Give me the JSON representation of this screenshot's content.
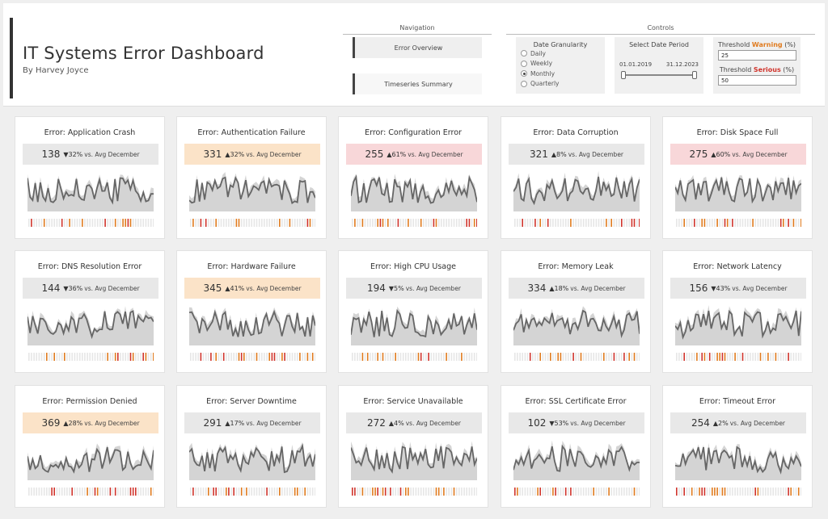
{
  "header": {
    "title": "IT Systems Error Dashboard",
    "subtitle": "By Harvey Joyce"
  },
  "navigation": {
    "heading": "Navigation",
    "items": [
      {
        "label": "Error Overview",
        "active": true
      },
      {
        "label": "Timeseries Summary",
        "active": false
      }
    ]
  },
  "controls": {
    "heading": "Controls",
    "granularity": {
      "title": "Date Granularity",
      "options": [
        "Daily",
        "Weekly",
        "Monthly",
        "Quarterly"
      ],
      "selected": "Monthly"
    },
    "date_period": {
      "title": "Select Date Period",
      "start": "01.01.2019",
      "end": "31.12.2023"
    },
    "threshold": {
      "warning_prefix": "Threshold ",
      "warning_word": "Warning",
      "warning_suffix": " (%)",
      "warning_value": "25",
      "serious_prefix": "Threshold ",
      "serious_word": "Serious",
      "serious_suffix": " (%)",
      "serious_value": "50"
    }
  },
  "colors": {
    "normal_kpi": "#e8e8e8",
    "warning_kpi": "#fbe3c8",
    "serious_kpi": "#f8d7d9",
    "warning_accent": "#e07b1f",
    "serious_accent": "#d0342c",
    "line": "#666666",
    "band": "#d4d4d4"
  },
  "vs_label": "vs. Avg December",
  "cards": [
    {
      "title": "Error: Application Crash",
      "value": "138",
      "dir": "▼",
      "pct": "32%",
      "status": "normal"
    },
    {
      "title": "Error: Authentication Failure",
      "value": "331",
      "dir": "▲",
      "pct": "32%",
      "status": "warning"
    },
    {
      "title": "Error: Configuration Error",
      "value": "255",
      "dir": "▲",
      "pct": "61%",
      "status": "serious"
    },
    {
      "title": "Error: Data Corruption",
      "value": "321",
      "dir": "▲",
      "pct": "8%",
      "status": "normal"
    },
    {
      "title": "Error: Disk Space Full",
      "value": "275",
      "dir": "▲",
      "pct": "60%",
      "status": "serious"
    },
    {
      "title": "Error: DNS Resolution Error",
      "value": "144",
      "dir": "▼",
      "pct": "36%",
      "status": "normal"
    },
    {
      "title": "Error: Hardware Failure",
      "value": "345",
      "dir": "▲",
      "pct": "41%",
      "status": "warning"
    },
    {
      "title": "Error: High CPU Usage",
      "value": "194",
      "dir": "▼",
      "pct": "5%",
      "status": "normal"
    },
    {
      "title": "Error: Memory Leak",
      "value": "334",
      "dir": "▲",
      "pct": "18%",
      "status": "normal"
    },
    {
      "title": "Error: Network Latency",
      "value": "156",
      "dir": "▼",
      "pct": "43%",
      "status": "normal"
    },
    {
      "title": "Error: Permission Denied",
      "value": "369",
      "dir": "▲",
      "pct": "28%",
      "status": "warning"
    },
    {
      "title": "Error: Server Downtime",
      "value": "291",
      "dir": "▲",
      "pct": "17%",
      "status": "normal"
    },
    {
      "title": "Error: Service Unavailable",
      "value": "272",
      "dir": "▲",
      "pct": "4%",
      "status": "normal"
    },
    {
      "title": "Error: SSL Certificate Error",
      "value": "102",
      "dir": "▼",
      "pct": "53%",
      "status": "normal"
    },
    {
      "title": "Error: Timeout Error",
      "value": "254",
      "dir": "▲",
      "pct": "2%",
      "status": "normal"
    }
  ]
}
